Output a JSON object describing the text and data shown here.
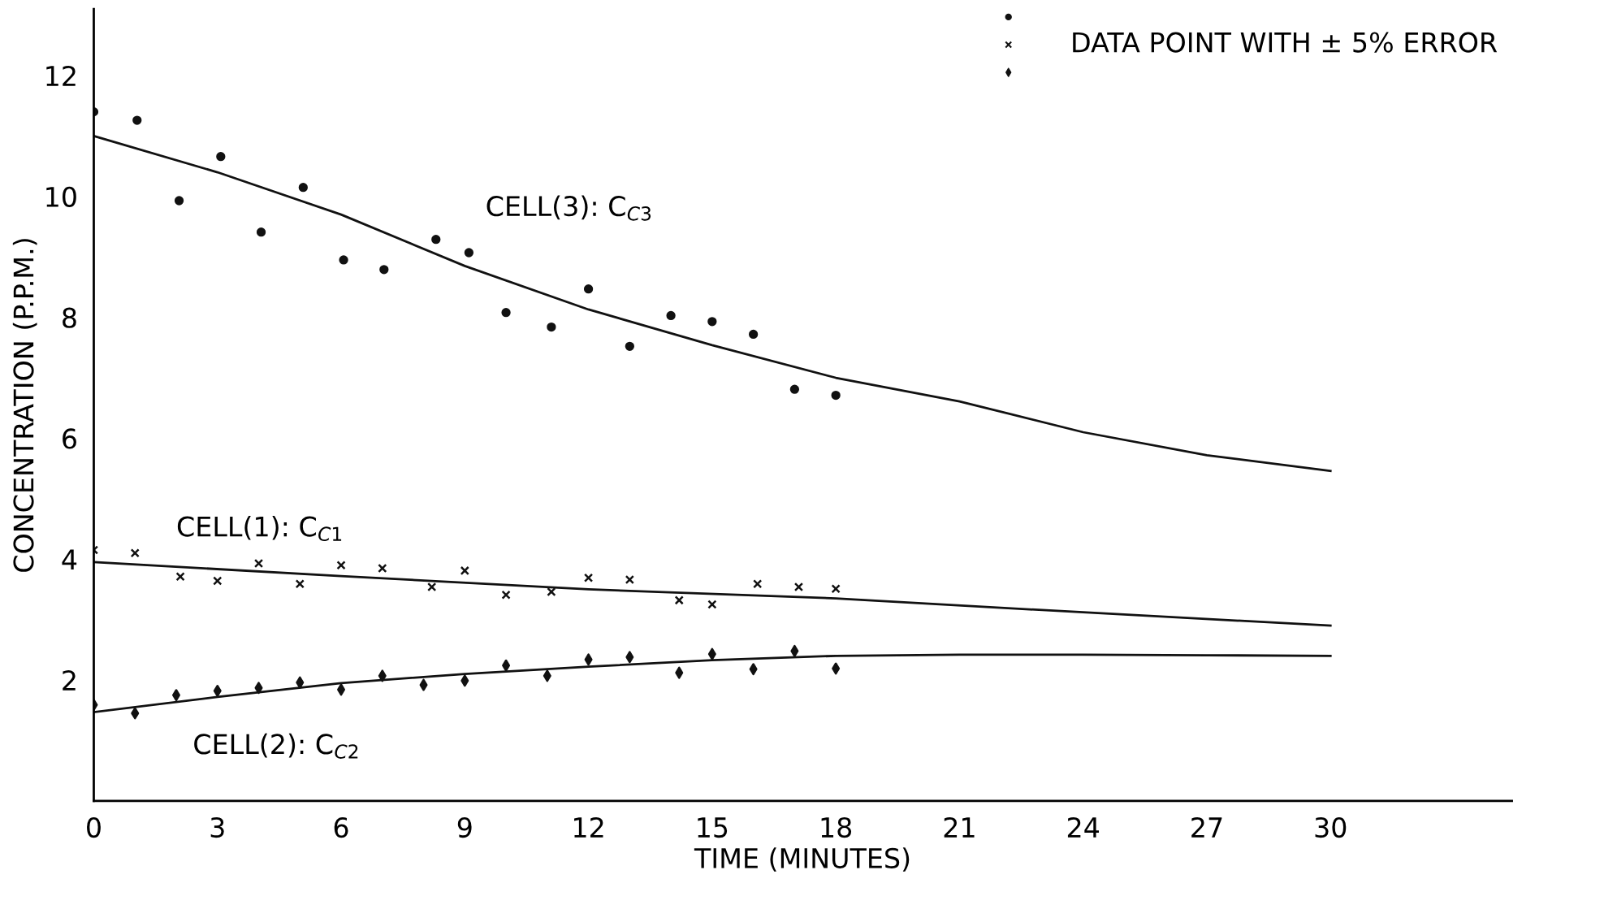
{
  "chart_data": {
    "type": "scatter",
    "xlabel": "TIME (MINUTES)",
    "ylabel": "CONCENTRATION (P.P.M.)",
    "xlim": [
      0,
      34.4
    ],
    "ylim": [
      0,
      13.1
    ],
    "xticks": [
      0,
      3,
      6,
      9,
      12,
      15,
      18,
      21,
      24,
      27,
      30
    ],
    "yticks": [
      2,
      4,
      6,
      8,
      10,
      12
    ],
    "grid": false,
    "series": [
      {
        "marker": "circle",
        "color": "#111111",
        "x": [
          0,
          1.05,
          2.07,
          3.08,
          4.06,
          5.08,
          6.06,
          7.04,
          8.3,
          9.1,
          10.0,
          11.1,
          12.0,
          13.0,
          14.0,
          15.0,
          16.0,
          17.0,
          18.0
        ],
        "values": [
          11.4,
          11.26,
          9.93,
          10.66,
          9.41,
          10.15,
          8.95,
          8.79,
          9.29,
          9.07,
          8.08,
          7.84,
          8.47,
          7.52,
          8.03,
          7.93,
          7.72,
          6.81,
          6.71
        ]
      },
      {
        "marker": "cross",
        "color": "#111111",
        "x": [
          0,
          1.0,
          2.1,
          3.0,
          4.0,
          5.0,
          6.0,
          7.0,
          8.2,
          9.0,
          10.0,
          11.1,
          12.0,
          13.0,
          14.2,
          15.0,
          16.1,
          17.1,
          18.0
        ],
        "values": [
          4.15,
          4.1,
          3.71,
          3.64,
          3.93,
          3.59,
          3.9,
          3.85,
          3.54,
          3.81,
          3.41,
          3.46,
          3.69,
          3.66,
          3.32,
          3.25,
          3.59,
          3.54,
          3.51
        ]
      },
      {
        "marker": "diamond",
        "color": "#111111",
        "x": [
          0,
          1.0,
          2.0,
          3.0,
          4.0,
          5.0,
          6.0,
          7.0,
          8.0,
          9.0,
          10.0,
          11.0,
          12.0,
          13.0,
          14.2,
          15.0,
          16.0,
          17.0,
          18.0
        ],
        "values": [
          1.59,
          1.45,
          1.75,
          1.82,
          1.87,
          1.96,
          1.84,
          2.07,
          1.92,
          1.99,
          2.24,
          2.07,
          2.34,
          2.38,
          2.12,
          2.43,
          2.18,
          2.48,
          2.19
        ]
      },
      {
        "type": "line",
        "name": "CELL(3): C$_{C3}$",
        "color": "#111111",
        "x": [
          0,
          3,
          6,
          9,
          12,
          15,
          18,
          21,
          24,
          27,
          30
        ],
        "values": [
          11.0,
          10.4,
          9.7,
          8.85,
          8.13,
          7.54,
          7.0,
          6.61,
          6.1,
          5.72,
          5.46
        ]
      },
      {
        "type": "line",
        "name": "CELL(1): C$_{C1}$",
        "color": "#111111",
        "x": [
          0,
          6,
          12,
          18,
          24,
          30
        ],
        "values": [
          3.95,
          3.72,
          3.5,
          3.35,
          3.12,
          2.9
        ]
      },
      {
        "type": "line",
        "name": "CELL(2): C$_{C2}$",
        "color": "#111111",
        "x": [
          0,
          3,
          6,
          9,
          12,
          15,
          18,
          21,
          24,
          27,
          30
        ],
        "values": [
          1.47,
          1.72,
          1.95,
          2.1,
          2.22,
          2.33,
          2.4,
          2.42,
          2.42,
          2.41,
          2.4
        ]
      }
    ],
    "annotations": [
      "DATA POINT WITH ± 5% ERROR"
    ]
  }
}
